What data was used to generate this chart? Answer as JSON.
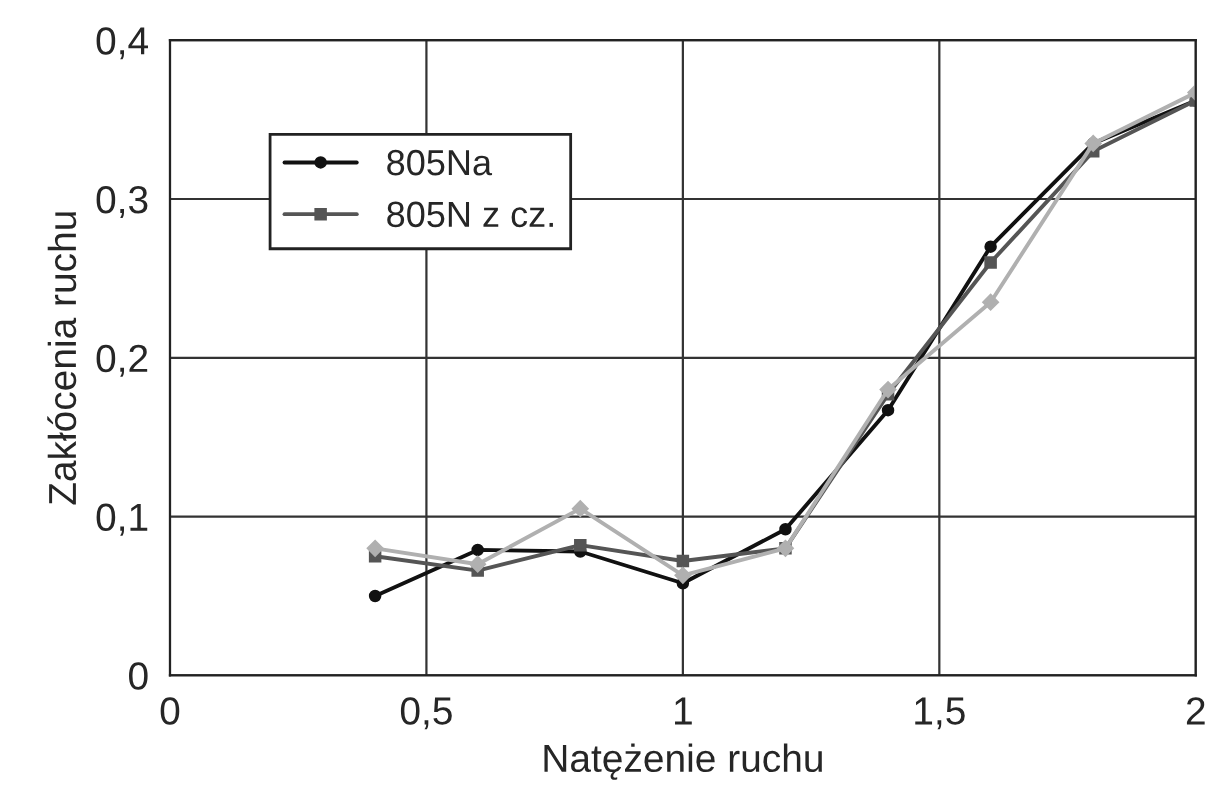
{
  "chart_data": {
    "type": "line",
    "xlabel": "Natężenie ruchu",
    "ylabel": "Zakłócenia ruchu",
    "x": [
      0.4,
      0.6,
      0.8,
      1.0,
      1.2,
      1.4,
      1.6,
      1.8,
      2.0
    ],
    "series": [
      {
        "name": "805Na",
        "color": "#111111",
        "marker": "circle",
        "values": [
          0.05,
          0.079,
          0.078,
          0.058,
          0.092,
          0.167,
          0.27,
          0.335,
          0.362
        ]
      },
      {
        "name": "805N z cz.",
        "color": "#555555",
        "marker": "square",
        "values": [
          0.075,
          0.066,
          0.082,
          0.072,
          0.08,
          0.177,
          0.26,
          0.33,
          0.362
        ]
      },
      {
        "color": "#b0b0b0",
        "marker": "diamond",
        "values": [
          0.08,
          0.07,
          0.105,
          0.063,
          0.08,
          0.18,
          0.235,
          0.335,
          0.367
        ]
      }
    ],
    "xlim": [
      0,
      2
    ],
    "ylim": [
      0,
      0.4
    ],
    "xticks": [
      0,
      {
        "value": 0.5,
        "label": "0,5"
      },
      1,
      {
        "value": 1.5,
        "label": "1,5"
      },
      2
    ],
    "yticks": [
      0,
      {
        "value": 0.1,
        "label": "0,1"
      },
      {
        "value": 0.2,
        "label": "0,2"
      },
      {
        "value": 0.3,
        "label": "0,3"
      },
      {
        "value": 0.4,
        "label": "0,4"
      }
    ],
    "grid": true,
    "legend": "top left",
    "line_style": "solid"
  }
}
